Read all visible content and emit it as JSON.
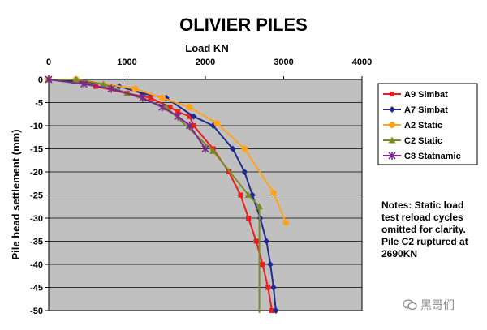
{
  "chart_data": {
    "type": "line",
    "title": "OLIVIER PILES",
    "xlabel": "Load KN",
    "ylabel": "Pile head settlement (mm)",
    "xlim": [
      0,
      4000
    ],
    "ylim": [
      -50,
      0
    ],
    "x_ticks": [
      0,
      1000,
      2000,
      3000,
      4000
    ],
    "y_ticks": [
      0,
      -5,
      -10,
      -15,
      -20,
      -25,
      -30,
      -35,
      -40,
      -45,
      -50
    ],
    "x_axis_position": "top",
    "grid": "horizontal",
    "plot_background": "#c0c0c0",
    "legend_position": "right",
    "series": [
      {
        "name": "A9 Simbat",
        "color": "#ee1c1c",
        "marker": "square",
        "points": [
          [
            0,
            0
          ],
          [
            400,
            -0.5
          ],
          [
            600,
            -1.5
          ],
          [
            1000,
            -3
          ],
          [
            1300,
            -4
          ],
          [
            1550,
            -6
          ],
          [
            1650,
            -7
          ],
          [
            1800,
            -8
          ],
          [
            1850,
            -10
          ],
          [
            2100,
            -15
          ],
          [
            2300,
            -20
          ],
          [
            2450,
            -25
          ],
          [
            2550,
            -30
          ],
          [
            2650,
            -35
          ],
          [
            2730,
            -40
          ],
          [
            2800,
            -45
          ],
          [
            2850,
            -50
          ]
        ]
      },
      {
        "name": "A7 Simbat",
        "color": "#1f2b8f",
        "marker": "diamond",
        "points": [
          [
            0,
            0
          ],
          [
            450,
            -0.5
          ],
          [
            900,
            -1.5
          ],
          [
            1200,
            -3
          ],
          [
            1500,
            -4
          ],
          [
            1850,
            -8
          ],
          [
            2100,
            -10
          ],
          [
            2350,
            -15
          ],
          [
            2500,
            -20
          ],
          [
            2600,
            -25
          ],
          [
            2700,
            -30
          ],
          [
            2780,
            -35
          ],
          [
            2830,
            -40
          ],
          [
            2870,
            -45
          ],
          [
            2900,
            -50
          ]
        ]
      },
      {
        "name": "A2 Static",
        "color": "#ffa31a",
        "marker": "circle",
        "points": [
          [
            0,
            0
          ],
          [
            350,
            0
          ],
          [
            1100,
            -2
          ],
          [
            1450,
            -4
          ],
          [
            1800,
            -6
          ],
          [
            2150,
            -9.5
          ],
          [
            2500,
            -15
          ],
          [
            2870,
            -24.5
          ],
          [
            3030,
            -31
          ]
        ]
      },
      {
        "name": "C2 Static",
        "color": "#7b8c23",
        "marker": "triangle",
        "points": [
          [
            0,
            0
          ],
          [
            350,
            0
          ],
          [
            700,
            -1
          ],
          [
            1000,
            -3
          ],
          [
            1500,
            -6
          ],
          [
            2100,
            -15.5
          ],
          [
            2550,
            -25
          ],
          [
            2690,
            -27.5
          ],
          [
            2690,
            -50.5
          ]
        ]
      },
      {
        "name": "C8 Statnamic",
        "color": "#7a2a8c",
        "marker": "x",
        "points": [
          [
            0,
            0
          ],
          [
            450,
            -1
          ],
          [
            800,
            -2
          ],
          [
            1200,
            -4
          ],
          [
            1450,
            -6
          ],
          [
            1650,
            -8
          ],
          [
            1800,
            -10
          ],
          [
            2000,
            -15
          ]
        ]
      }
    ],
    "notes": "Notes: Static load test reload cycles omitted for clarity.  Pile C2 ruptured at 2690KN"
  },
  "watermark": {
    "text": "黑哥们"
  }
}
